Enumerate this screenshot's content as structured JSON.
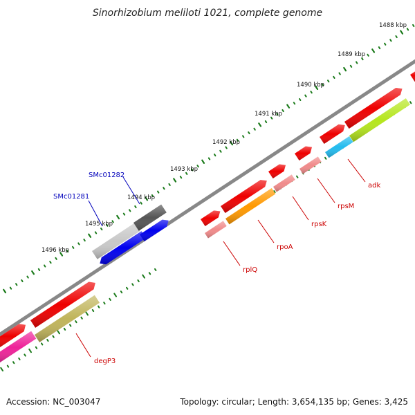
{
  "title": "Sinorhizobium meliloti 1021, complete genome",
  "accession": "Accession: NC_003047",
  "summary": "Topology: circular; Length: 3,654,135 bp; Genes: 3,425",
  "ticks": [
    "1488 kbp",
    "1489 kbp",
    "1490 kbp",
    "1491 kbp",
    "1492 kbp",
    "1493 kbp",
    "1494 kbp",
    "1495 kbp",
    "1496 kbp"
  ],
  "genes": [
    {
      "name": "adk",
      "color": "#cc0000"
    },
    {
      "name": "rpsM",
      "color": "#cc0000"
    },
    {
      "name": "rpsK",
      "color": "#cc0000"
    },
    {
      "name": "rpoA",
      "color": "#cc0000"
    },
    {
      "name": "rplQ",
      "color": "#cc0000"
    },
    {
      "name": "degP3",
      "color": "#cc0000"
    },
    {
      "name": "SMc01282",
      "color": "#0000bb"
    },
    {
      "name": "SMc01281",
      "color": "#0000bb"
    }
  ],
  "colors": {
    "backbone": "#888888",
    "tick": "#1a7a1a",
    "cds": "#ee0000",
    "cds_light": "#f08a8a",
    "orange": "#ff9900",
    "lime": "#b5e61d",
    "cyan": "#22bbee",
    "gray_dark": "#555555",
    "gray_light": "#c8c8c8",
    "blue": "#0000ee",
    "olive": "#c0b45a",
    "magenta": "#ee2299"
  }
}
